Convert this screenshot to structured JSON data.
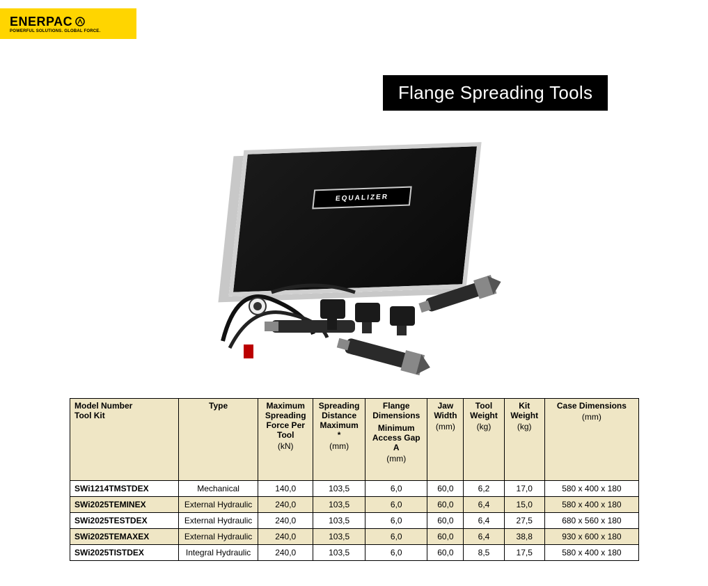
{
  "logo": {
    "brand": "ENERPAC",
    "tagline": "POWERFUL SOLUTIONS. GLOBAL FORCE."
  },
  "title": "Flange Spreading Tools",
  "product_case_label": "EQUALIZER",
  "table": {
    "headers": [
      {
        "main": "Model Number",
        "sub": "Tool Kit",
        "unit": ""
      },
      {
        "main": "Type",
        "sub": "",
        "unit": ""
      },
      {
        "main": "Maximum Spreading Force Per Tool",
        "sub": "",
        "unit": "(kN)"
      },
      {
        "main": "Spreading Distance Maximum",
        "sub": "*",
        "unit": "(mm)"
      },
      {
        "main": "Flange Dimensions",
        "sub": "Minimum Access Gap A",
        "unit": "(mm)"
      },
      {
        "main": "Jaw Width",
        "sub": "",
        "unit": "(mm)"
      },
      {
        "main": "Tool Weight",
        "sub": "",
        "unit": "(kg)"
      },
      {
        "main": "Kit Weight",
        "sub": "",
        "unit": "(kg)"
      },
      {
        "main": "Case Dimensions",
        "sub": "",
        "unit": "(mm)"
      }
    ],
    "rows": [
      [
        "SWi1214TMSTDEX",
        "Mechanical",
        "140,0",
        "103,5",
        "6,0",
        "60,0",
        "6,2",
        "17,0",
        "580 x 400 x 180"
      ],
      [
        "SWi2025TEMINEX",
        "External Hydraulic",
        "240,0",
        "103,5",
        "6,0",
        "60,0",
        "6,4",
        "15,0",
        "580 x 400 x 180"
      ],
      [
        "SWi2025TESTDEX",
        "External Hydraulic",
        "240,0",
        "103,5",
        "6,0",
        "60,0",
        "6,4",
        "27,5",
        "680 x 560 x 180"
      ],
      [
        "SWi2025TEMAXEX",
        "External Hydraulic",
        "240,0",
        "103,5",
        "6,0",
        "60,0",
        "6,4",
        "38,8",
        "930 x 600 x 180"
      ],
      [
        "SWi2025TISTDEX",
        "Integral Hydraulic",
        "240,0",
        "103,5",
        "6,0",
        "60,0",
        "8,5",
        "17,5",
        "580 x 400 x 180"
      ]
    ],
    "colors": {
      "header_bg": "#efe6c5",
      "row_alt_bg": "#efe6c5",
      "row_bg": "#ffffff",
      "border": "#000000"
    }
  }
}
